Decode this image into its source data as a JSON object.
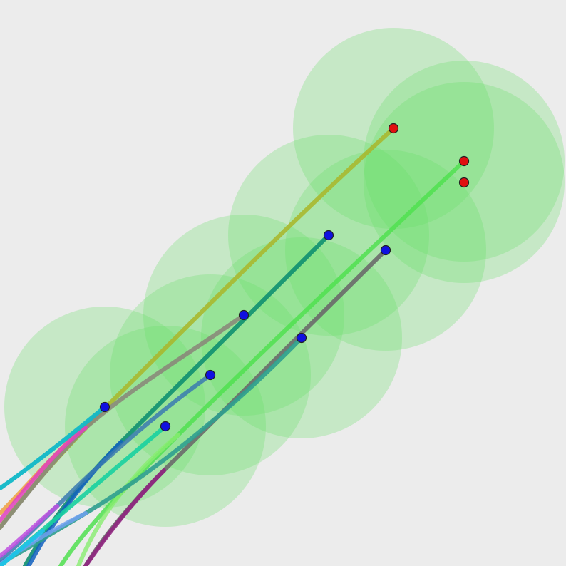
{
  "colors": {
    "background": "#ececec",
    "radius_fill": "#66e066",
    "blue_marker": "#1010e0",
    "red_marker": "#e01010"
  },
  "marker_kinds": [
    "blue-agent",
    "red-goal"
  ]
}
